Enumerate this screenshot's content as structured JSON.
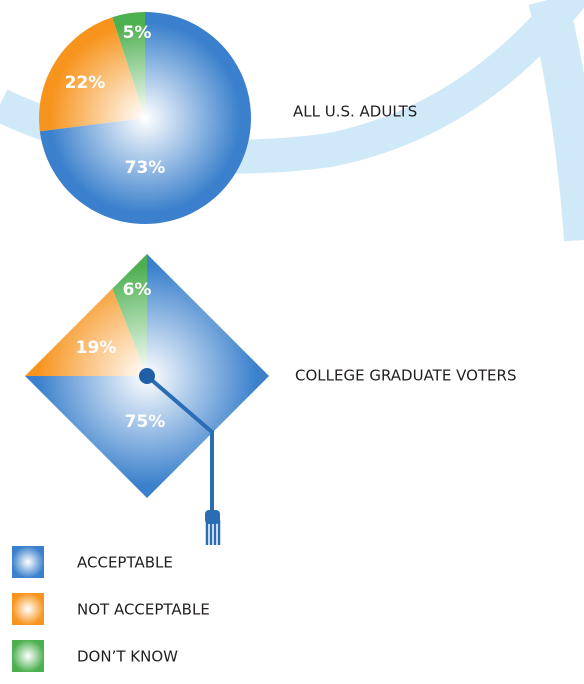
{
  "legend": {
    "labels": [
      "ACCEPTABLE",
      "NOT ACCEPTABLE",
      "DON’T KNOW"
    ],
    "colors": [
      "#3a80cc",
      "#f7941d",
      "#4cb050"
    ]
  },
  "chart_data": [
    {
      "type": "pie",
      "shape": "circle",
      "title": "ALL U.S. ADULTS",
      "values": [
        73,
        22,
        5
      ],
      "value_labels": [
        "73%",
        "22%",
        "5%"
      ]
    },
    {
      "type": "pie",
      "shape": "diamond",
      "title": "COLLEGE GRADUATE VOTERS",
      "values": [
        75,
        19,
        6
      ],
      "value_labels": [
        "75%",
        "19%",
        "6%"
      ]
    }
  ]
}
